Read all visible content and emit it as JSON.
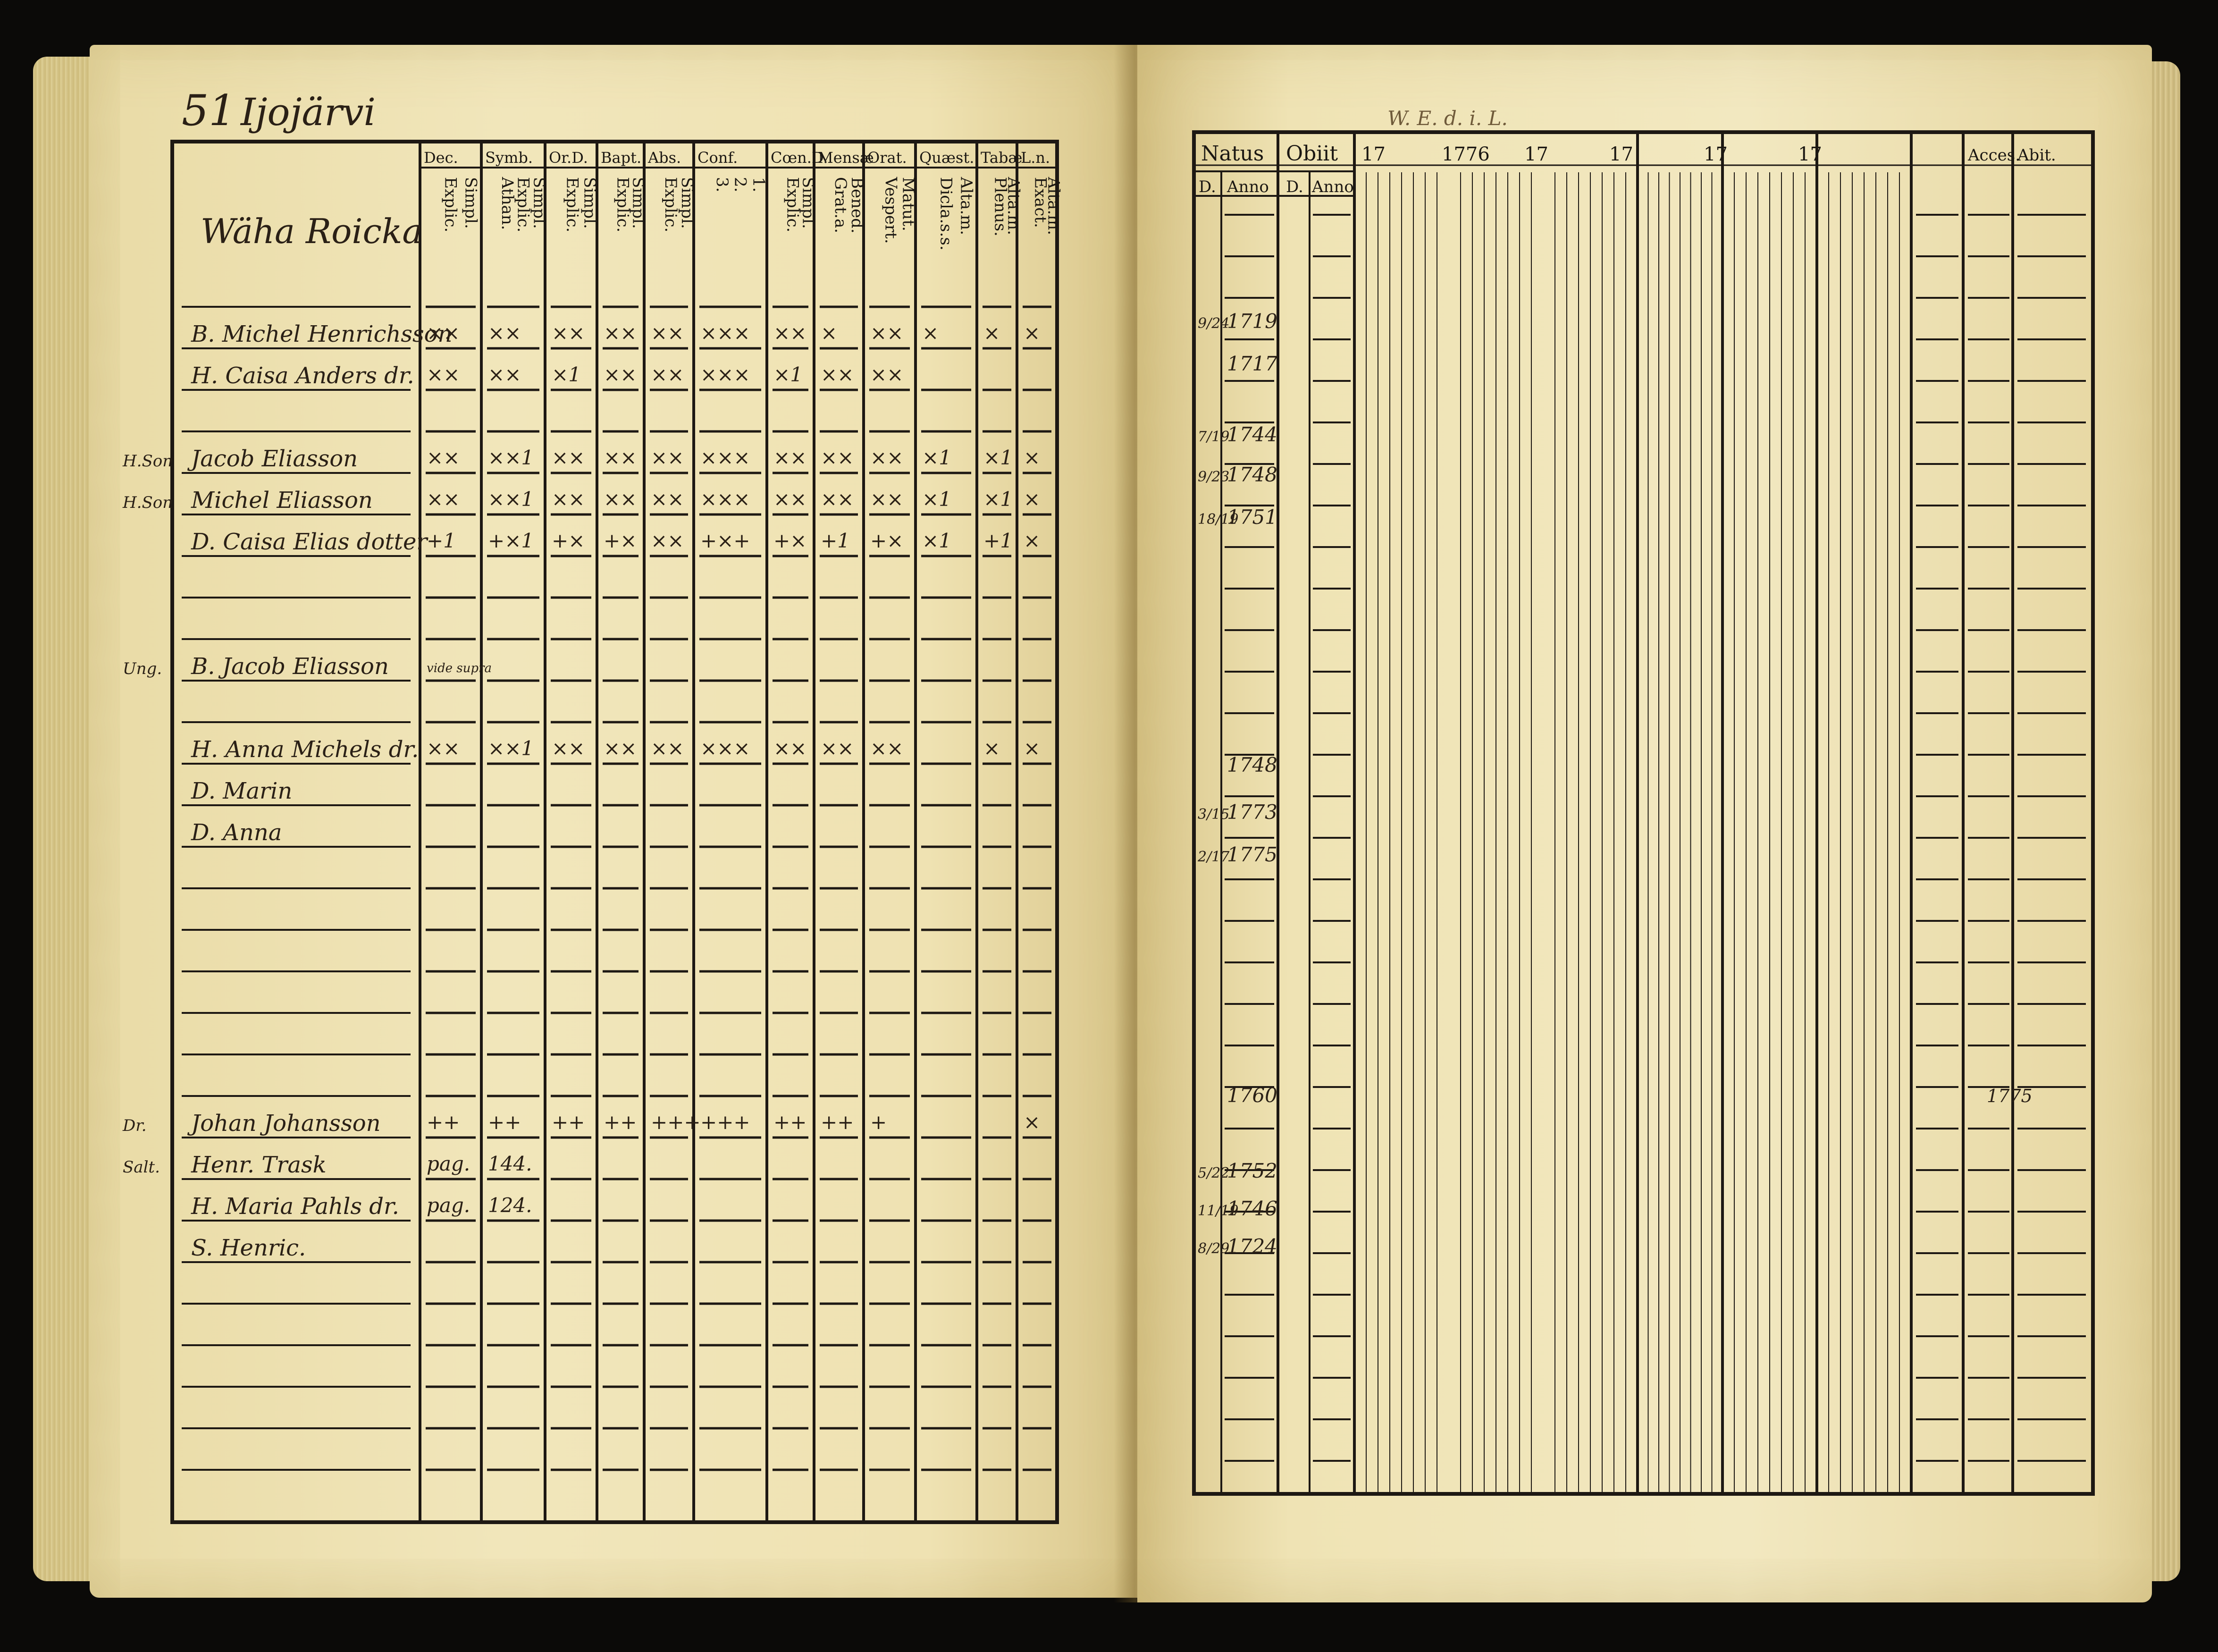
{
  "left_page": {
    "page_number": "51",
    "place": "Ijojärvi",
    "name_header": "Wäha Roicka",
    "column_headers": [
      {
        "top": "Dec.",
        "sub": [
          "Explic.",
          "Simpl."
        ]
      },
      {
        "top": "Symb.",
        "sub": [
          "Athan.",
          "Explic.",
          "Simpl."
        ]
      },
      {
        "top": "Or.D.",
        "sub": [
          "Explic.",
          "Simpl."
        ]
      },
      {
        "top": "Bapt.",
        "sub": [
          "Explic.",
          "Simpl."
        ]
      },
      {
        "top": "Abs.",
        "sub": [
          "Explic.",
          "Simpl."
        ]
      },
      {
        "top": "Conf.",
        "sub": [
          "3.",
          "2.",
          "1."
        ]
      },
      {
        "top": "Cœn.D.",
        "sub": [
          "Explic.",
          "Simpl."
        ]
      },
      {
        "top": "Mensæ",
        "sub": [
          "Grat.a.",
          "Bened."
        ]
      },
      {
        "top": "Orat.",
        "sub": [
          "Vespert.",
          "Matut."
        ]
      },
      {
        "top": "Quæst.",
        "sub": [
          "Dicla.s.s.",
          "Alta.m."
        ]
      },
      {
        "top": "Tabæ",
        "sub": [
          "Plenus.",
          "Alta.m."
        ]
      },
      {
        "top": "L.n.",
        "sub": [
          "Exact.",
          "Alta.m."
        ]
      }
    ],
    "entries": [
      {
        "prefix": "",
        "name": "B. Michel Henrichsson",
        "marks": [
          "××",
          "××",
          "××",
          "××",
          "××",
          "×××",
          "××",
          "×",
          "××",
          "×",
          "×",
          "×"
        ]
      },
      {
        "prefix": "",
        "name": "H. Caisa Anders dr.",
        "marks": [
          "××",
          "××",
          "×1",
          "××",
          "××",
          "×××",
          "×1",
          "××",
          "××",
          "",
          "",
          ""
        ]
      },
      {
        "prefix": "H.Son",
        "name": "Jacob Eliasson",
        "marks": [
          "××",
          "××1",
          "××",
          "××",
          "××",
          "×××",
          "××",
          "××",
          "××",
          "×1",
          "×1",
          "×"
        ]
      },
      {
        "prefix": "H.Son",
        "name": "Michel Eliasson",
        "marks": [
          "××",
          "××1",
          "××",
          "××",
          "××",
          "×××",
          "××",
          "××",
          "××",
          "×1",
          "×1",
          "×"
        ]
      },
      {
        "prefix": "",
        "name": "D. Caisa Elias dotter",
        "marks": [
          "+1",
          "+×1",
          "+×",
          "+×",
          "××",
          "+×+",
          "+×",
          "+1",
          "+×",
          "×1",
          "+1",
          "×"
        ]
      },
      {
        "prefix": "Ung.",
        "name": "B. Jacob Eliasson",
        "marks": [
          "vide supra",
          "",
          "",
          "",
          "",
          "",
          "",
          "",
          "",
          "",
          "",
          ""
        ]
      },
      {
        "prefix": "",
        "name": "H. Anna Michels dr.",
        "marks": [
          "××",
          "××1",
          "××",
          "××",
          "××",
          "×××",
          "××",
          "××",
          "××",
          "",
          "×",
          "×"
        ]
      },
      {
        "prefix": "",
        "name": "D. Marin",
        "marks": [
          "",
          "",
          "",
          "",
          "",
          "",
          "",
          "",
          "",
          "",
          "",
          ""
        ]
      },
      {
        "prefix": "",
        "name": "D. Anna",
        "marks": [
          "",
          "",
          "",
          "",
          "",
          "",
          "",
          "",
          "",
          "",
          "",
          ""
        ]
      },
      {
        "prefix": "Dr.",
        "name": "Johan Johansson",
        "marks": [
          "++",
          "++",
          "++",
          "++",
          "+++",
          "+++",
          "++",
          "++",
          "+",
          "",
          "",
          "×"
        ]
      },
      {
        "prefix": "Salt.",
        "name": "Henr. Trask",
        "marks": [
          "pag.",
          "144.",
          "",
          "",
          "",
          "",
          "",
          "",
          "",
          "",
          "",
          ""
        ]
      },
      {
        "prefix": "",
        "name": "H. Maria Pahls dr.",
        "marks": [
          "pag.",
          "124.",
          "",
          "",
          "",
          "",
          "",
          "",
          "",
          "",
          "",
          ""
        ]
      },
      {
        "prefix": "",
        "name": "S. Henric.",
        "marks": [
          "",
          "",
          "",
          "",
          "",
          "",
          "",
          "",
          "",
          "",
          "",
          ""
        ]
      }
    ]
  },
  "right_page": {
    "annotation": "W. E. d. i. L.",
    "natus_header": "Natus",
    "obiit_header": "Obiit",
    "d_label": "D.",
    "anno_label": "Anno",
    "year_headers": [
      "17",
      "1776",
      "17",
      "17",
      "17",
      "17"
    ],
    "accessit_header": "Acces.",
    "abiit_header": "Abit.",
    "births": [
      {
        "day": "9/24",
        "year": "1719"
      },
      {
        "day": "",
        "year": "1717"
      },
      {
        "day": "7/19",
        "year": "1744"
      },
      {
        "day": "9/23",
        "year": "1748"
      },
      {
        "day": "18/19",
        "year": "1751"
      },
      {
        "day": "",
        "year": "1748"
      },
      {
        "day": "3/15",
        "year": "1773"
      },
      {
        "day": "2/17",
        "year": "1775"
      },
      {
        "day": "",
        "year": "1760"
      },
      {
        "day": "5/22",
        "year": "1752"
      },
      {
        "day": "11/19",
        "year": "1746"
      },
      {
        "day": "8/29",
        "year": "1724"
      }
    ],
    "accessit_value": "1775",
    "colors": {
      "ink": "#1b1712",
      "paper": "#f0e4b6",
      "pencil": "#6f5a3a"
    }
  }
}
